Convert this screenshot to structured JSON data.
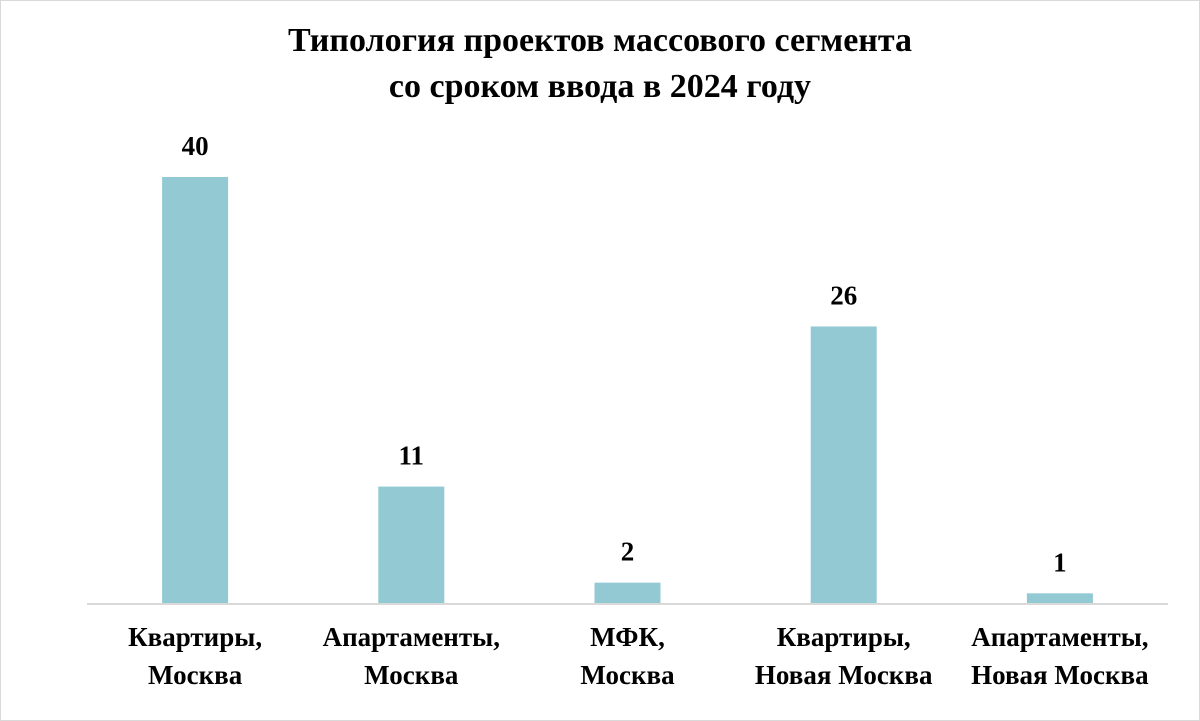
{
  "chart_data": {
    "type": "bar",
    "title": [
      "Типология проектов массового сегмента",
      "со сроком ввода в 2024 году"
    ],
    "categories": [
      [
        "Квартиры,",
        "Москва"
      ],
      [
        "Апартаменты,",
        "Москва"
      ],
      [
        "МФК,",
        "Москва"
      ],
      [
        "Квартиры,",
        "Новая Москва"
      ],
      [
        "Апартаменты,",
        "Новая Москва"
      ]
    ],
    "values": [
      40,
      11,
      2,
      26,
      1
    ],
    "data_labels": [
      "40",
      "11",
      "2",
      "26",
      "1"
    ],
    "xlabel": "",
    "ylabel": "",
    "ylim": [
      0,
      40
    ],
    "grid": false,
    "legend": "none",
    "bar_color": "#92c9d3",
    "axis_color": "#d9d9d9"
  }
}
